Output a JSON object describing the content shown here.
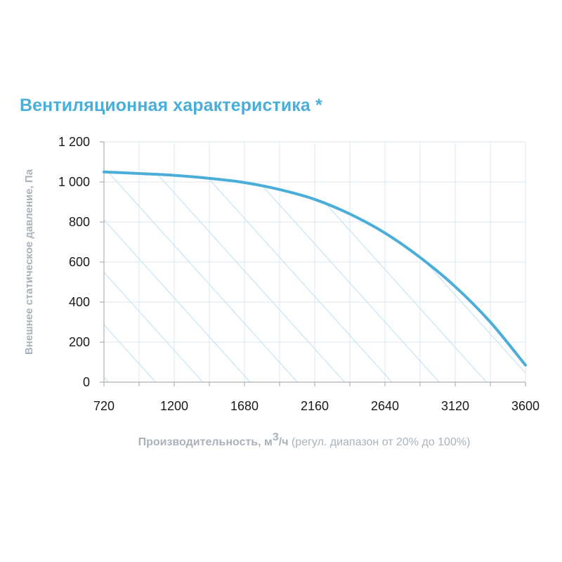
{
  "chart_data": {
    "type": "line",
    "title": "Вентиляционная характеристика *",
    "ylabel": "Внешнее статическое давление, Па",
    "xlabel": {
      "main_before_sup": "Производительность, м",
      "superscript": "3",
      "main_after_sup": "/ч",
      "note": " (регул. диапазон от 20% до 100%)"
    },
    "xlim": [
      720,
      3600
    ],
    "ylim": [
      0,
      1200
    ],
    "x_ticks": [
      720,
      960,
      1200,
      1440,
      1680,
      1920,
      2160,
      2400,
      2640,
      2880,
      3120,
      3360,
      3600
    ],
    "x_tick_labels": [
      "720",
      "",
      "1200",
      "",
      "1680",
      "",
      "2160",
      "",
      "2640",
      "",
      "3120",
      "",
      "3600"
    ],
    "y_ticks": [
      0,
      200,
      400,
      600,
      800,
      1000,
      1200
    ],
    "y_tick_labels": [
      "0",
      "200",
      "400",
      "600",
      "800",
      "1 000",
      "1 200"
    ],
    "grid": true,
    "fill_under_curve": "hatched",
    "series": [
      {
        "x": [
          720,
          960,
          1200,
          1440,
          1680,
          1920,
          2160,
          2400,
          2640,
          2880,
          3120,
          3360,
          3600
        ],
        "y": [
          1050,
          1042,
          1033,
          1018,
          997,
          962,
          913,
          840,
          745,
          623,
          477,
          300,
          85
        ]
      }
    ],
    "colors": {
      "line": "#4aaed9",
      "hatch": "#c5e4f3",
      "grid": "#dbe7ee",
      "axis": "#b0b0b0",
      "title": "#4aaed9",
      "label": "#a9b2bb"
    }
  }
}
